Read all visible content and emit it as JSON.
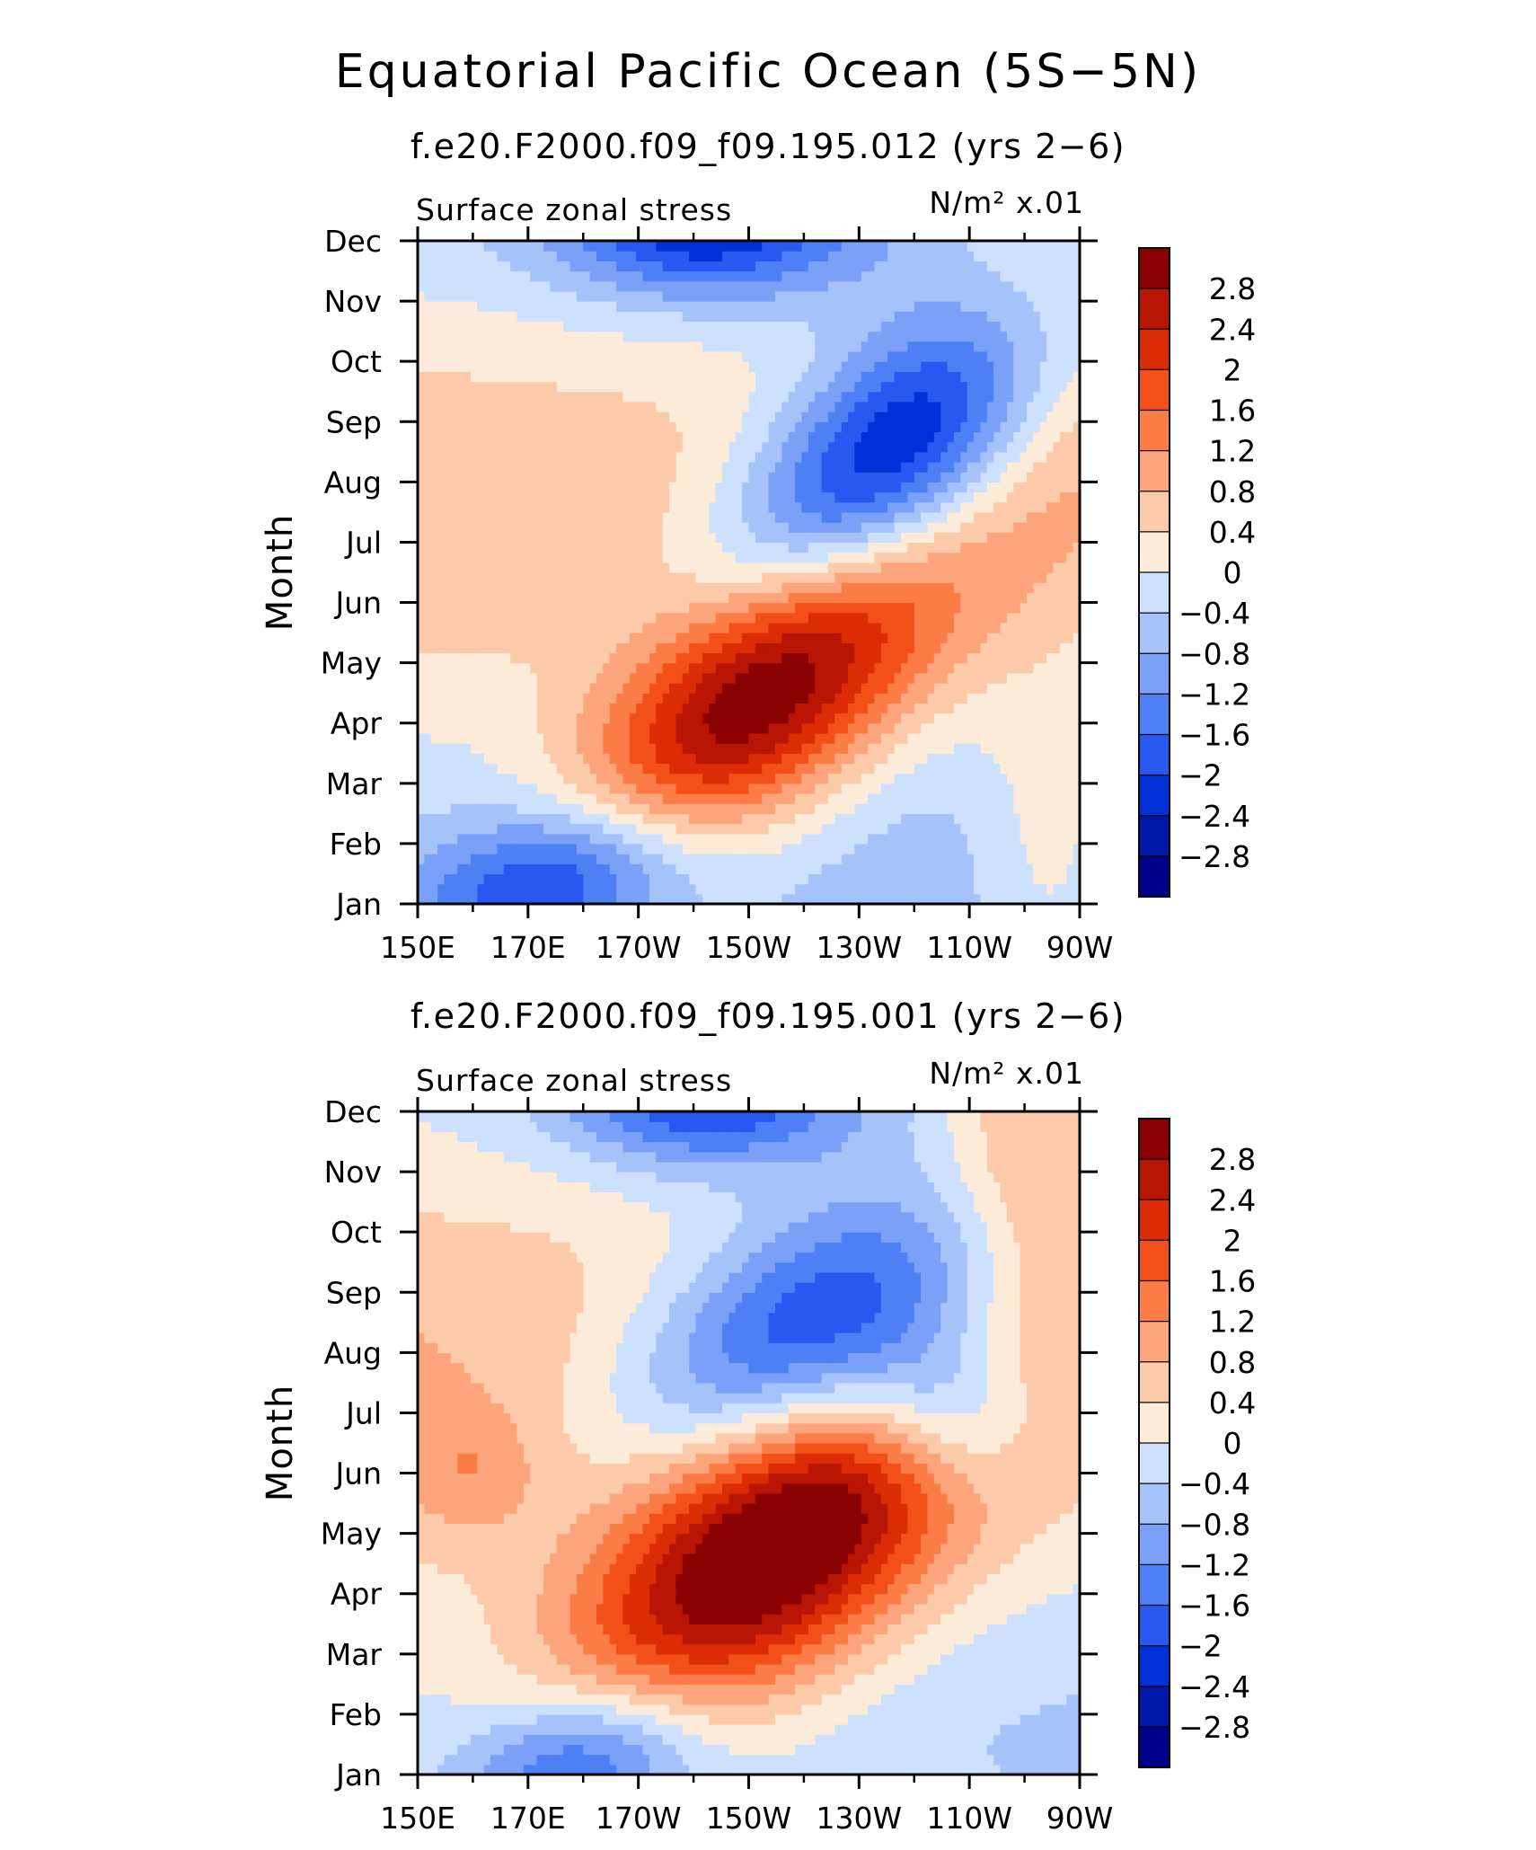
{
  "title": "Equatorial Pacific Ocean (5S−5N)",
  "colors": {
    "levels": [
      "#00008a",
      "#0018a8",
      "#0030d8",
      "#2858f0",
      "#4d7ff5",
      "#7aa0f8",
      "#a6c2fb",
      "#cde0fd",
      "#fdebd9",
      "#fccaa8",
      "#fca47b",
      "#fc7c48",
      "#f35019",
      "#dc2c06",
      "#b81505",
      "#8b0000"
    ],
    "axis": "#000000"
  },
  "chart_data": [
    {
      "type": "heatmap",
      "title": "f.e20.F2000.f09_f09.195.012 (yrs 2−6)",
      "left_label": "Surface zonal stress",
      "units_label": "N/m² x.01",
      "ylabel": "Month",
      "x_ticks": [
        "150E",
        "170E",
        "170W",
        "150W",
        "130W",
        "110W",
        "90W"
      ],
      "y_ticks": [
        "Jan",
        "Feb",
        "Mar",
        "Apr",
        "May",
        "Jun",
        "Jul",
        "Aug",
        "Sep",
        "Oct",
        "Nov",
        "Dec"
      ],
      "xlim": [
        150,
        270
      ],
      "colorbar_levels": [
        2.8,
        2.4,
        2,
        1.6,
        1.2,
        0.8,
        0.4,
        0,
        -0.4,
        -0.8,
        -1.2,
        -1.6,
        -2,
        -2.4,
        -2.8
      ],
      "model": {
        "base": [
          0.2,
          -0.35,
          -0.6
        ],
        "features": [
          {
            "lon": 212,
            "month": 4.5,
            "amp": 3.5,
            "sx": 24,
            "sy": 1.6,
            "tilt": 0.055
          },
          {
            "lon": 234,
            "month": 8.2,
            "amp": -3.3,
            "sx": 22,
            "sy": 1.4,
            "tilt": 0.055
          },
          {
            "lon": 176,
            "month": 1.4,
            "amp": -2.2,
            "sx": 18,
            "sy": 0.9,
            "tilt": 0.02
          },
          {
            "lon": 202,
            "month": 12.2,
            "amp": -2.0,
            "sx": 18,
            "sy": 0.8,
            "tilt": 0.0
          },
          {
            "lon": 265,
            "month": 11.0,
            "amp": 0.9,
            "sx": 14,
            "sy": 2.5,
            "tilt": 0.0
          },
          {
            "lon": 265,
            "month": 2.0,
            "amp": 0.8,
            "sx": 10,
            "sy": 1.8,
            "tilt": 0.0
          }
        ]
      }
    },
    {
      "type": "heatmap",
      "title": "f.e20.F2000.f09_f09.195.001 (yrs 2−6)",
      "left_label": "Surface zonal stress",
      "units_label": "N/m² x.01",
      "ylabel": "Month",
      "x_ticks": [
        "150E",
        "170E",
        "170W",
        "150W",
        "130W",
        "110W",
        "90W"
      ],
      "y_ticks": [
        "Jan",
        "Feb",
        "Mar",
        "Apr",
        "May",
        "Jun",
        "Jul",
        "Aug",
        "Sep",
        "Oct",
        "Nov",
        "Dec"
      ],
      "xlim": [
        150,
        270
      ],
      "colorbar_levels": [
        2.8,
        2.4,
        2,
        1.6,
        1.2,
        0.8,
        0.4,
        0,
        -0.4,
        -0.8,
        -1.2,
        -1.6,
        -2,
        -2.4,
        -2.8
      ],
      "model": {
        "base": [
          0.35,
          -0.3,
          -0.5
        ],
        "features": [
          {
            "lon": 214,
            "month": 4.7,
            "amp": 3.5,
            "sx": 26,
            "sy": 1.7,
            "tilt": 0.05
          },
          {
            "lon": 222,
            "month": 8.3,
            "amp": -2.8,
            "sx": 24,
            "sy": 1.4,
            "tilt": 0.03
          },
          {
            "lon": 246,
            "month": 7.0,
            "amp": -1.6,
            "sx": 12,
            "sy": 1.0,
            "tilt": 0.0
          },
          {
            "lon": 180,
            "month": 1.2,
            "amp": -2.0,
            "sx": 16,
            "sy": 0.9,
            "tilt": 0.02
          },
          {
            "lon": 202,
            "month": 12.2,
            "amp": -1.9,
            "sx": 18,
            "sy": 0.8,
            "tilt": 0.0
          },
          {
            "lon": 262,
            "month": 11.5,
            "amp": 1.2,
            "sx": 12,
            "sy": 2.0,
            "tilt": 0.0
          },
          {
            "lon": 160,
            "month": 6.0,
            "amp": 0.6,
            "sx": 8,
            "sy": 0.7,
            "tilt": 0.0
          }
        ]
      }
    }
  ]
}
